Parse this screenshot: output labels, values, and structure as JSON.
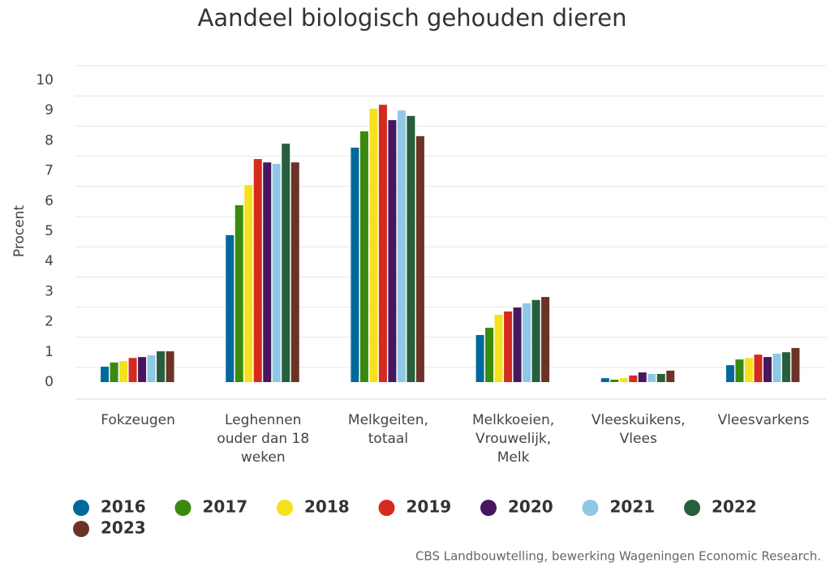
{
  "chart_data": {
    "type": "bar",
    "title": "Aandeel biologisch gehouden dieren",
    "ylabel": "Procent",
    "source": "CBS Landbouwtelling, bewerking Wageningen Economic Research.",
    "categories": [
      "Fokzeugen",
      "Leghennen ouder dan 18 weken",
      "Melkgeiten, totaal",
      "Melkkoeien, Vrouwelijk, Melk",
      "Vleeskuikens, Vlees",
      "Vleesvarkens"
    ],
    "series": [
      {
        "name": "2016",
        "color": "#00699b",
        "values": [
          0.51,
          4.87,
          7.77,
          1.56,
          0.13,
          0.56
        ]
      },
      {
        "name": "2017",
        "color": "#3a8a10",
        "values": [
          0.65,
          5.86,
          8.31,
          1.8,
          0.08,
          0.75
        ]
      },
      {
        "name": "2018",
        "color": "#f5e11d",
        "values": [
          0.7,
          6.53,
          9.06,
          2.23,
          0.13,
          0.8
        ]
      },
      {
        "name": "2019",
        "color": "#d52b1e",
        "values": [
          0.8,
          7.39,
          9.19,
          2.34,
          0.22,
          0.91
        ]
      },
      {
        "name": "2020",
        "color": "#46165f",
        "values": [
          0.83,
          7.28,
          8.68,
          2.47,
          0.32,
          0.83
        ]
      },
      {
        "name": "2021",
        "color": "#8fc8e6",
        "values": [
          0.89,
          7.23,
          9.0,
          2.61,
          0.27,
          0.94
        ]
      },
      {
        "name": "2022",
        "color": "#275e3b",
        "values": [
          1.02,
          7.9,
          8.82,
          2.72,
          0.27,
          0.99
        ]
      },
      {
        "name": "2023",
        "color": "#6b3326",
        "values": [
          1.02,
          7.28,
          8.15,
          2.82,
          0.38,
          1.13
        ]
      }
    ],
    "ylim": [
      0,
      10
    ],
    "yticks": [
      0,
      1,
      2,
      3,
      4,
      5,
      6,
      7,
      8,
      9,
      10
    ],
    "grid": true
  }
}
